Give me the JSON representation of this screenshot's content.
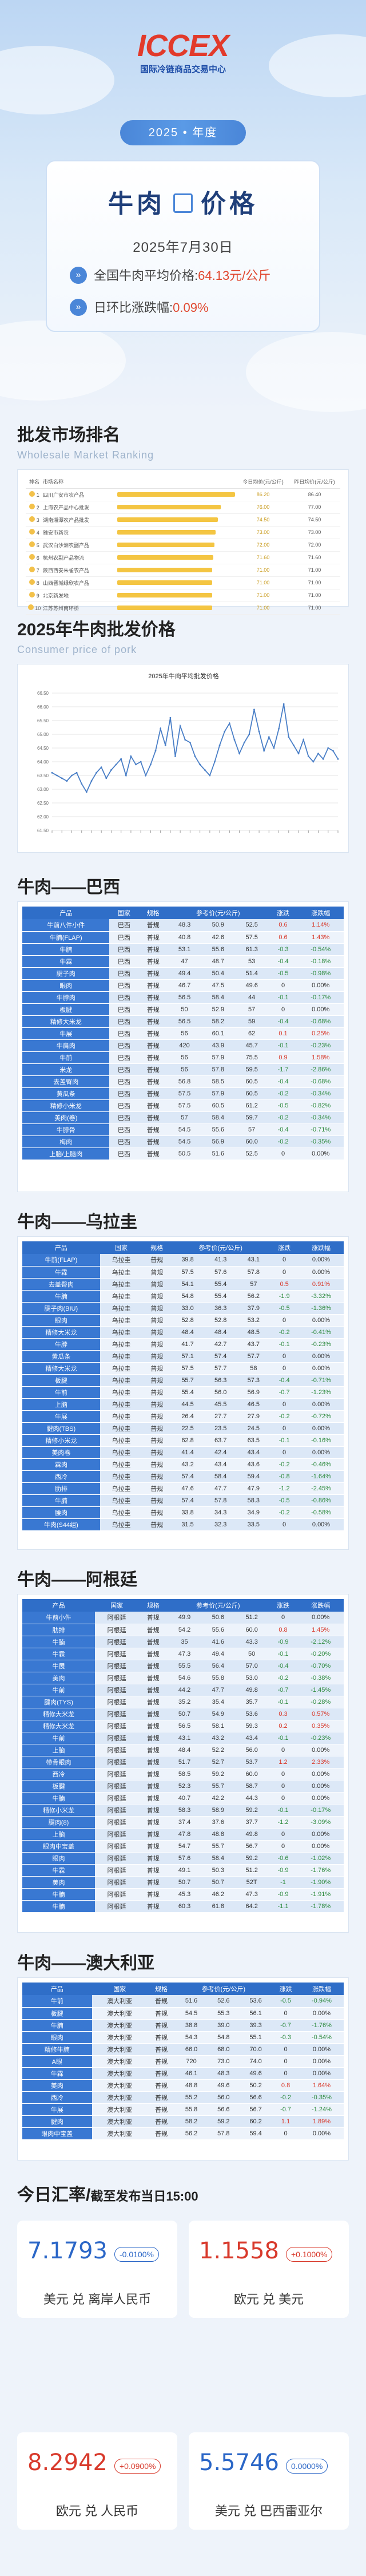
{
  "logo": {
    "mark": "ICCEX",
    "subtitle": "国际冷链商品交易中心"
  },
  "header": {
    "year_label": "2025 • 年度",
    "product": "牛肉",
    "suffix": "价格",
    "date": "2025年7月30日",
    "avg_label": "全国牛肉平均价格:",
    "avg_value": "64.13元/公斤",
    "change_label": "日环比涨跌幅:",
    "change_value": "0.09%"
  },
  "rank_section": {
    "title": "批发市场排名",
    "subtitle": "Wholesale Market Ranking",
    "columns": [
      "排名",
      "市场名称",
      "",
      "今日均价(元/公斤)",
      "昨日均价(元/公斤)"
    ],
    "rows": [
      {
        "rank": "1",
        "name": "四川广安市农产品",
        "bar": 0.98,
        "today": "86.20",
        "yest": "86.40"
      },
      {
        "rank": "2",
        "name": "上海农产品中心批发",
        "bar": 0.86,
        "today": "76.00",
        "yest": "77.00"
      },
      {
        "rank": "3",
        "name": "湖南湘潭农产品批发",
        "bar": 0.84,
        "today": "74.50",
        "yest": "74.50"
      },
      {
        "rank": "4",
        "name": "雅安市新农",
        "bar": 0.82,
        "today": "73.00",
        "yest": "73.00"
      },
      {
        "rank": "5",
        "name": "武汉白沙洲农副产品",
        "bar": 0.81,
        "today": "72.00",
        "yest": "72.00"
      },
      {
        "rank": "6",
        "name": "杭州农副产品物流",
        "bar": 0.8,
        "today": "71.60",
        "yest": "71.60"
      },
      {
        "rank": "7",
        "name": "陕西西安朱雀农产品",
        "bar": 0.79,
        "today": "71.00",
        "yest": "71.00"
      },
      {
        "rank": "8",
        "name": "山西晋城绿欣农产品",
        "bar": 0.79,
        "today": "71.00",
        "yest": "71.00"
      },
      {
        "rank": "9",
        "name": "北京新发地",
        "bar": 0.79,
        "today": "71.00",
        "yest": "71.00"
      },
      {
        "rank": "10",
        "name": "江苏苏州南环桥",
        "bar": 0.79,
        "today": "71.00",
        "yest": "71.00"
      }
    ]
  },
  "price_section": {
    "title": "2025年牛肉批发价格",
    "subtitle": "Consumer price of pork"
  },
  "chart_data": {
    "type": "line",
    "title": "2025年牛肉平均批发价格",
    "ylim": [
      61.5,
      66.5
    ],
    "yticks": [
      "66.50",
      "66.00",
      "65.50",
      "65.00",
      "64.50",
      "64.00",
      "63.50",
      "63.00",
      "62.50",
      "62.00",
      "61.50"
    ],
    "series": [
      {
        "values": [
          63.6,
          63.5,
          63.4,
          63.3,
          63.5,
          63.6,
          63.2,
          62.9,
          63.3,
          63.6,
          63.8,
          63.4,
          63.7,
          63.9,
          64.1,
          63.5,
          64.2,
          63.9,
          64.0,
          63.5,
          63.9,
          64.4,
          65.2,
          64.6,
          65.6,
          64.2,
          65.3,
          64.8,
          64.7,
          64.2,
          63.9,
          63.7,
          63.5,
          64.0,
          64.6,
          65.1,
          65.4,
          64.8,
          64.3,
          64.7,
          65.0,
          65.9,
          65.1,
          64.4,
          64.9,
          64.5,
          65.2,
          66.1,
          64.9,
          64.6,
          64.3,
          64.8,
          64.2,
          64.0,
          64.3,
          64.1,
          64.5,
          64.4,
          64.1
        ]
      }
    ],
    "color": "#4a7fc7"
  },
  "columns_origin": [
    "产品",
    "国家",
    "规格",
    "参考价(元/公斤)",
    "",
    "",
    "涨跌",
    "涨跌幅"
  ],
  "columns_origin2": [
    "产品",
    "国家",
    "规格",
    "参考价(元/公斤)",
    "",
    "",
    "涨跌",
    "涨跌幅"
  ],
  "subheads": [
    "",
    "",
    "",
    "周一",
    "周二",
    "周三",
    "",
    ""
  ],
  "brazil": {
    "title": "牛肉——巴西",
    "rows": [
      [
        "牛前八件小件",
        "巴西",
        "普规",
        "48.3",
        "50.9",
        "52.5",
        "0.6",
        "1.14%"
      ],
      [
        "牛腩(FLAP)",
        "巴西",
        "普规",
        "40.8",
        "42.6",
        "57.5",
        "0.6",
        "1.43%"
      ],
      [
        "牛腩",
        "巴西",
        "普规",
        "53.1",
        "55.6",
        "61.3",
        "-0.3",
        "-0.54%"
      ],
      [
        "牛霖",
        "巴西",
        "普规",
        "47",
        "48.7",
        "53",
        "-0.4",
        "-0.18%"
      ],
      [
        "腱子肉",
        "巴西",
        "普规",
        "49.4",
        "50.4",
        "51.4",
        "-0.5",
        "-0.98%"
      ],
      [
        "眼肉",
        "巴西",
        "普规",
        "46.7",
        "47.5",
        "49.6",
        "0",
        "0.00%"
      ],
      [
        "牛脖肉",
        "巴西",
        "普规",
        "56.5",
        "58.4",
        "44",
        "-0.1",
        "-0.17%"
      ],
      [
        "板腱",
        "巴西",
        "普规",
        "50",
        "52.9",
        "57",
        "0",
        "0.00%"
      ],
      [
        "精修大米龙",
        "巴西",
        "普规",
        "56.5",
        "58.2",
        "59",
        "-0.4",
        "-0.68%"
      ],
      [
        "牛展",
        "巴西",
        "普规",
        "56",
        "60.1",
        "62",
        "0.1",
        "0.25%"
      ],
      [
        "牛肩肉",
        "巴西",
        "普规",
        "420",
        "43.9",
        "45.7",
        "-0.1",
        "-0.23%"
      ],
      [
        "牛前",
        "巴西",
        "普规",
        "56",
        "57.9",
        "75.5",
        "0.9",
        "1.58%"
      ],
      [
        "米龙",
        "巴西",
        "普规",
        "56",
        "57.8",
        "59.5",
        "-1.7",
        "-2.86%"
      ],
      [
        "去盖臀肉",
        "巴西",
        "普规",
        "56.8",
        "58.5",
        "60.5",
        "-0.4",
        "-0.68%"
      ],
      [
        "黄瓜条",
        "巴西",
        "普规",
        "57.5",
        "57.9",
        "60.5",
        "-0.2",
        "-0.34%"
      ],
      [
        "精修小米龙",
        "巴西",
        "普规",
        "57.5",
        "60.5",
        "61.2",
        "-0.5",
        "-0.82%"
      ],
      [
        "美肉(卷)",
        "巴西",
        "普规",
        "57",
        "58.4",
        "59.7",
        "-0.2",
        "-0.34%"
      ],
      [
        "牛脖骨",
        "巴西",
        "普规",
        "54.5",
        "55.6",
        "57",
        "-0.4",
        "-0.71%"
      ],
      [
        "梅肉",
        "巴西",
        "普规",
        "54.5",
        "56.9",
        "60.0",
        "-0.2",
        "-0.35%"
      ],
      [
        "上脑/上脑肉",
        "巴西",
        "普规",
        "50.5",
        "51.6",
        "52.5",
        "0",
        "0.00%"
      ]
    ]
  },
  "uruguay": {
    "title": "牛肉——乌拉圭",
    "rows": [
      [
        "牛前(FLAP)",
        "乌拉圭",
        "普规",
        "39.8",
        "41.3",
        "43.1",
        "0",
        "0.00%"
      ],
      [
        "牛霖",
        "乌拉圭",
        "普规",
        "57.5",
        "57.6",
        "57.8",
        "0",
        "0.00%"
      ],
      [
        "去盖臀肉",
        "乌拉圭",
        "普规",
        "54.1",
        "55.4",
        "57",
        "0.5",
        "0.91%"
      ],
      [
        "牛腩",
        "乌拉圭",
        "普规",
        "54.8",
        "55.4",
        "56.2",
        "-1.9",
        "-3.32%"
      ],
      [
        "腱子肉(BIU)",
        "乌拉圭",
        "普规",
        "33.0",
        "36.3",
        "37.9",
        "-0.5",
        "-1.36%"
      ],
      [
        "眼肉",
        "乌拉圭",
        "普规",
        "52.8",
        "52.8",
        "53.2",
        "0",
        "0.00%"
      ],
      [
        "精修大米龙",
        "乌拉圭",
        "普规",
        "48.4",
        "48.4",
        "48.5",
        "-0.2",
        "-0.41%"
      ],
      [
        "牛脖",
        "乌拉圭",
        "普规",
        "41.7",
        "42.7",
        "43.7",
        "-0.1",
        "-0.23%"
      ],
      [
        "黄瓜条",
        "乌拉圭",
        "普规",
        "57.1",
        "57.4",
        "57.7",
        "0",
        "0.00%"
      ],
      [
        "精修大米龙",
        "乌拉圭",
        "普规",
        "57.5",
        "57.7",
        "58",
        "0",
        "0.00%"
      ],
      [
        "板腱",
        "乌拉圭",
        "普规",
        "55.7",
        "56.3",
        "57.3",
        "-0.4",
        "-0.71%"
      ],
      [
        "牛前",
        "乌拉圭",
        "普规",
        "55.4",
        "56.0",
        "56.9",
        "-0.7",
        "-1.23%"
      ],
      [
        "上脑",
        "乌拉圭",
        "普规",
        "44.5",
        "45.5",
        "46.5",
        "0",
        "0.00%"
      ],
      [
        "牛展",
        "乌拉圭",
        "普规",
        "26.4",
        "27.7",
        "27.9",
        "-0.2",
        "-0.72%"
      ],
      [
        "腱肉(TBS)",
        "乌拉圭",
        "普规",
        "22.5",
        "23.5",
        "24.5",
        "0",
        "0.00%"
      ],
      [
        "精修小米龙",
        "乌拉圭",
        "普规",
        "62.8",
        "63.7",
        "63.5",
        "-0.1",
        "-0.16%"
      ],
      [
        "美肉卷",
        "乌拉圭",
        "普规",
        "41.4",
        "42.4",
        "43.4",
        "0",
        "0.00%"
      ],
      [
        "霖肉",
        "乌拉圭",
        "普规",
        "43.2",
        "43.4",
        "43.6",
        "-0.2",
        "-0.46%"
      ],
      [
        "西冷",
        "乌拉圭",
        "普规",
        "57.4",
        "58.4",
        "59.4",
        "-0.8",
        "-1.64%"
      ],
      [
        "肋排",
        "乌拉圭",
        "普规",
        "47.6",
        "47.7",
        "47.9",
        "-1.2",
        "-2.45%"
      ],
      [
        "牛腩",
        "乌拉圭",
        "普规",
        "57.4",
        "57.8",
        "58.3",
        "-0.5",
        "-0.86%"
      ],
      [
        "腰肉",
        "乌拉圭",
        "普规",
        "33.8",
        "34.3",
        "34.9",
        "-0.2",
        "-0.58%"
      ],
      [
        "牛肉(S44组)",
        "乌拉圭",
        "普规",
        "31.5",
        "32.3",
        "33.5",
        "0",
        "0.00%"
      ]
    ]
  },
  "argentina": {
    "title": "牛肉——阿根廷",
    "rows": [
      [
        "牛前小件",
        "阿根廷",
        "普规",
        "49.9",
        "50.6",
        "51.2",
        "0",
        "0.00%"
      ],
      [
        "肋排",
        "阿根廷",
        "普规",
        "54.2",
        "55.6",
        "60.0",
        "0.8",
        "1.45%"
      ],
      [
        "牛腩",
        "阿根廷",
        "普规",
        "35",
        "41.6",
        "43.3",
        "-0.9",
        "-2.12%"
      ],
      [
        "牛霖",
        "阿根廷",
        "普规",
        "47.3",
        "49.4",
        "50",
        "-0.1",
        "-0.20%"
      ],
      [
        "牛展",
        "阿根廷",
        "普规",
        "55.5",
        "56.4",
        "57.0",
        "-0.4",
        "-0.70%"
      ],
      [
        "美肉",
        "阿根廷",
        "普规",
        "54.6",
        "55.8",
        "53.0",
        "-0.2",
        "-0.38%"
      ],
      [
        "牛前",
        "阿根廷",
        "普规",
        "44.2",
        "47.7",
        "49.8",
        "-0.7",
        "-1.45%"
      ],
      [
        "腱肉(TYS)",
        "阿根廷",
        "普规",
        "35.2",
        "35.4",
        "35.7",
        "-0.1",
        "-0.28%"
      ],
      [
        "精修大米龙",
        "阿根廷",
        "普规",
        "50.7",
        "54.9",
        "53.6",
        "0.3",
        "0.57%"
      ],
      [
        "精修大米龙",
        "阿根廷",
        "普规",
        "56.5",
        "58.1",
        "59.3",
        "0.2",
        "0.35%"
      ],
      [
        "牛前",
        "阿根廷",
        "普规",
        "43.1",
        "43.2",
        "43.4",
        "-0.1",
        "-0.23%"
      ],
      [
        "上脑",
        "阿根廷",
        "普规",
        "48.4",
        "52.2",
        "56.0",
        "0",
        "0.00%"
      ],
      [
        "带骨眼肉",
        "阿根廷",
        "普规",
        "51.7",
        "52.7",
        "53.7",
        "1.2",
        "2.33%"
      ],
      [
        "西冷",
        "阿根廷",
        "普规",
        "58.5",
        "59.2",
        "60.0",
        "0",
        "0.00%"
      ],
      [
        "板腱",
        "阿根廷",
        "普规",
        "52.3",
        "55.7",
        "58.7",
        "0",
        "0.00%"
      ],
      [
        "牛腩",
        "阿根廷",
        "普规",
        "40.7",
        "42.2",
        "44.3",
        "0",
        "0.00%"
      ],
      [
        "精修小米龙",
        "阿根廷",
        "普规",
        "58.3",
        "58.9",
        "59.2",
        "-0.1",
        "-0.17%"
      ],
      [
        "腱肉(8)",
        "阿根廷",
        "普规",
        "37.4",
        "37.6",
        "37.7",
        "-1.2",
        "-3.09%"
      ],
      [
        "上脑",
        "阿根廷",
        "普规",
        "47.8",
        "48.8",
        "49.8",
        "0",
        "0.00%"
      ],
      [
        "眼肉中宝盖",
        "阿根廷",
        "普规",
        "54.7",
        "55.7",
        "56.7",
        "0",
        "0.00%"
      ],
      [
        "眼肉",
        "阿根廷",
        "普规",
        "57.6",
        "58.4",
        "59.2",
        "-0.6",
        "-1.02%"
      ],
      [
        "牛霖",
        "阿根廷",
        "普规",
        "49.1",
        "50.3",
        "51.2",
        "-0.9",
        "-1.76%"
      ],
      [
        "美肉",
        "阿根廷",
        "普规",
        "50.7",
        "50.7",
        "52T",
        "-1",
        "-1.90%"
      ],
      [
        "牛腩",
        "阿根廷",
        "普规",
        "45.3",
        "46.2",
        "47.3",
        "-0.9",
        "-1.91%"
      ],
      [
        "牛腩",
        "阿根廷",
        "普规",
        "60.3",
        "61.8",
        "64.2",
        "-1.1",
        "-1.78%"
      ]
    ]
  },
  "australia": {
    "title": "牛肉——澳大利亚",
    "rows": [
      [
        "牛前",
        "澳大利亚",
        "普规",
        "51.6",
        "52.6",
        "53.6",
        "-0.5",
        "-0.94%"
      ],
      [
        "板腱",
        "澳大利亚",
        "普规",
        "54.5",
        "55.3",
        "56.1",
        "0",
        "0.00%"
      ],
      [
        "牛腩",
        "澳大利亚",
        "普规",
        "38.8",
        "39.0",
        "39.3",
        "-0.7",
        "-1.76%"
      ],
      [
        "眼肉",
        "澳大利亚",
        "普规",
        "54.3",
        "54.8",
        "55.1",
        "-0.3",
        "-0.54%"
      ],
      [
        "精修牛腩",
        "澳大利亚",
        "普规",
        "66.0",
        "68.0",
        "70.0",
        "0",
        "0.00%"
      ],
      [
        "A眼",
        "澳大利亚",
        "普规",
        "720",
        "73.0",
        "74.0",
        "0",
        "0.00%"
      ],
      [
        "牛霖",
        "澳大利亚",
        "普规",
        "46.1",
        "48.3",
        "49.6",
        "0",
        "0.00%"
      ],
      [
        "美肉",
        "澳大利亚",
        "普规",
        "48.8",
        "49.6",
        "50.2",
        "0.8",
        "1.64%"
      ],
      [
        "西冷",
        "澳大利亚",
        "普规",
        "55.2",
        "56.0",
        "56.6",
        "-0.2",
        "-0.35%"
      ],
      [
        "牛展",
        "澳大利亚",
        "普规",
        "55.8",
        "56.6",
        "56.7",
        "-0.7",
        "-1.24%"
      ],
      [
        "腱肉",
        "澳大利亚",
        "普规",
        "58.2",
        "59.2",
        "60.2",
        "1.1",
        "1.89%"
      ],
      [
        "眼肉中宝盖",
        "澳大利亚",
        "普规",
        "56.2",
        "57.8",
        "59.4",
        "0",
        "0.00%"
      ]
    ]
  },
  "fx": {
    "title": "今日汇率/",
    "title_note": "截至发布当日15:00",
    "cards": [
      {
        "value": "7.1793",
        "change": "-0.0100%",
        "label": "美元 兑 离岸人民币",
        "dir": "down"
      },
      {
        "value": "1.1558",
        "change": "+0.1000%",
        "label": "欧元 兑 美元",
        "dir": "up"
      },
      {
        "value": "8.2942",
        "change": "+0.0900%",
        "label": "欧元 兑 人民币",
        "dir": "up"
      },
      {
        "value": "5.5746",
        "change": "0.0000%",
        "label": "美元 兑 巴西雷亚尔",
        "dir": "flat"
      }
    ]
  },
  "colors": {
    "accent": "#2f6ec8",
    "up": "#d8392b",
    "down": "#2d8a3e",
    "gold": "#f4c542"
  }
}
